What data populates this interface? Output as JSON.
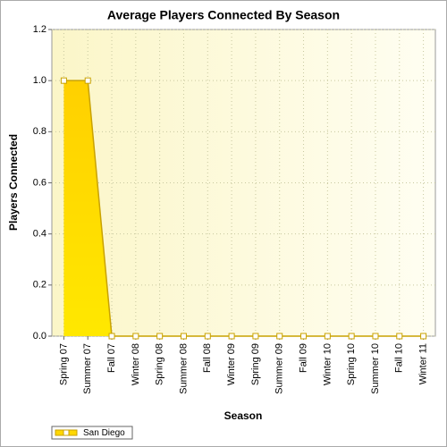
{
  "chart_data": {
    "type": "area",
    "title": "Average Players Connected By Season",
    "x_label": "Season",
    "y_label": "Players Connected",
    "categories": [
      "Spring 07",
      "Summer 07",
      "Fall 07",
      "Winter 08",
      "Spring 08",
      "Summer 08",
      "Fall 08",
      "Winter 09",
      "Spring 09",
      "Summer 09",
      "Fall 09",
      "Winter 10",
      "Spring 10",
      "Summer 10",
      "Fall 10",
      "Winter 11"
    ],
    "series": [
      {
        "name": "San Diego",
        "color": "#ffd700",
        "values": [
          1,
          1,
          0,
          0,
          0,
          0,
          0,
          0,
          0,
          0,
          0,
          0,
          0,
          0,
          0,
          0
        ]
      }
    ],
    "ylim": [
      0,
      1.2
    ],
    "yticks": [
      {
        "value": 0,
        "label": "0.0"
      },
      0.2,
      0.4,
      0.6,
      0.8,
      {
        "value": 1,
        "label": "1.0"
      },
      1.2
    ],
    "grid": true,
    "legend": "bottom-left"
  }
}
